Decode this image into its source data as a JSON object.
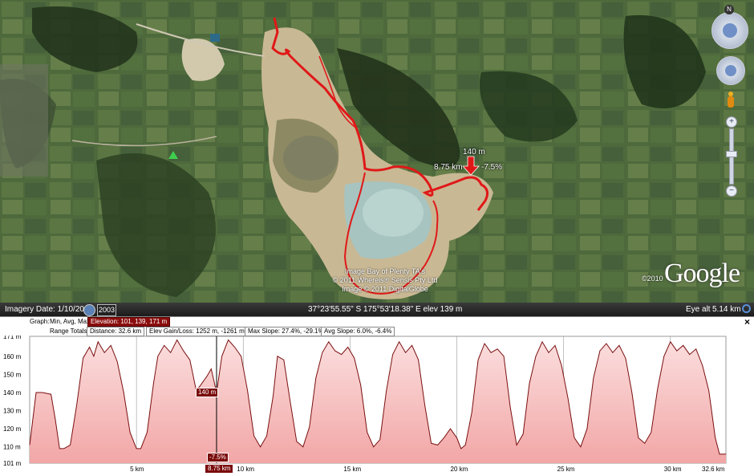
{
  "map": {
    "marker_elevation": "140 m",
    "marker_distance": "8.75 km",
    "marker_slope": "-7.5%",
    "credits": [
      "Image Bay of Plenty TA's",
      "© 2011 Whereis® Sensis Pty Ltd",
      "Image © 2011 DigitalGlobe"
    ],
    "google_logo": "Google",
    "google_copyright": "©2010",
    "compass_letter": "N"
  },
  "statusbar": {
    "imagery_date": "Imagery Date: 1/10/2004",
    "year_button": "2003",
    "coordinates": "37°23'55.55\" S  175°53'18.38\" E  elev  139 m",
    "eye_alt_label": "Eye alt",
    "eye_alt_value": "5.14 km"
  },
  "profile": {
    "graph_label": "Graph:",
    "graph_options": "Min, Avg, Max",
    "elevation": "Elevation: 101, 139, 171 m",
    "range_totals_label": "Range Totals:",
    "distance": "Distance: 32.6 km",
    "elev_gain_loss": "Elev Gain/Loss: 1252 m, -1261 m",
    "max_slope": "Max Slope: 27.4%, -29.1%",
    "avg_slope": "Avg Slope: 6.0%, -6.4%",
    "close_label": "×",
    "cursor_elevation": "140 m",
    "cursor_slope": "-7.5%",
    "cursor_distance": "8.75 km"
  },
  "chart_data": {
    "type": "area",
    "x_unit": "km",
    "y_unit": "m",
    "xlim": [
      0,
      32.6
    ],
    "ylim": [
      101,
      171
    ],
    "y_ticks": [
      "171 m",
      "160 m",
      "150 m",
      "140 m",
      "130 m",
      "120 m",
      "110 m",
      "101 m"
    ],
    "y_tick_values": [
      171,
      160,
      150,
      140,
      130,
      120,
      110,
      101
    ],
    "x_ticks": [
      "5 km",
      "10 km",
      "15 km",
      "20 km",
      "25 km",
      "30 km",
      "32.6 km"
    ],
    "x_tick_values": [
      5,
      10,
      15,
      20,
      25,
      30,
      32.6
    ],
    "cursor_x": 8.75,
    "x": [
      0,
      0.3,
      0.6,
      1.0,
      1.2,
      1.4,
      1.6,
      1.9,
      2.2,
      2.5,
      2.8,
      3.0,
      3.2,
      3.5,
      3.8,
      4.1,
      4.4,
      4.7,
      5.0,
      5.2,
      5.5,
      5.8,
      6.0,
      6.3,
      6.6,
      6.9,
      7.2,
      7.5,
      7.8,
      8.0,
      8.3,
      8.5,
      8.75,
      9.0,
      9.3,
      9.6,
      9.9,
      10.2,
      10.5,
      10.8,
      11.1,
      11.4,
      11.6,
      11.9,
      12.2,
      12.5,
      12.8,
      13.1,
      13.4,
      13.7,
      14.0,
      14.3,
      14.6,
      14.9,
      15.2,
      15.5,
      15.8,
      16.1,
      16.4,
      16.7,
      17.0,
      17.3,
      17.6,
      17.9,
      18.2,
      18.5,
      18.8,
      19.1,
      19.4,
      19.7,
      20.0,
      20.2,
      20.4,
      20.7,
      21.0,
      21.3,
      21.6,
      21.9,
      22.2,
      22.5,
      22.8,
      23.1,
      23.4,
      23.7,
      24.0,
      24.3,
      24.6,
      24.9,
      25.2,
      25.5,
      25.8,
      26.1,
      26.4,
      26.7,
      27.0,
      27.3,
      27.6,
      27.9,
      28.2,
      28.5,
      28.8,
      29.1,
      29.4,
      29.7,
      30.0,
      30.3,
      30.6,
      30.9,
      31.2,
      31.5,
      31.8,
      32.1,
      32.3,
      32.6
    ],
    "y": [
      111,
      140,
      140,
      139,
      125,
      109,
      109,
      111,
      133,
      159,
      165,
      160,
      168,
      162,
      166,
      157,
      140,
      118,
      109,
      109,
      118,
      145,
      160,
      166,
      162,
      169,
      163,
      158,
      141,
      144,
      149,
      153,
      140,
      160,
      169,
      165,
      160,
      141,
      116,
      110,
      116,
      138,
      160,
      158,
      135,
      113,
      110,
      121,
      148,
      162,
      168,
      163,
      161,
      165,
      159,
      144,
      118,
      110,
      114,
      141,
      161,
      168,
      162,
      166,
      158,
      133,
      112,
      111,
      115,
      120,
      115,
      109,
      111,
      129,
      158,
      167,
      162,
      164,
      160,
      132,
      111,
      117,
      145,
      160,
      168,
      162,
      166,
      155,
      137,
      115,
      110,
      120,
      148,
      163,
      167,
      162,
      166,
      159,
      140,
      115,
      112,
      118,
      142,
      160,
      168,
      163,
      166,
      161,
      164,
      155,
      141,
      115,
      106,
      106
    ]
  }
}
